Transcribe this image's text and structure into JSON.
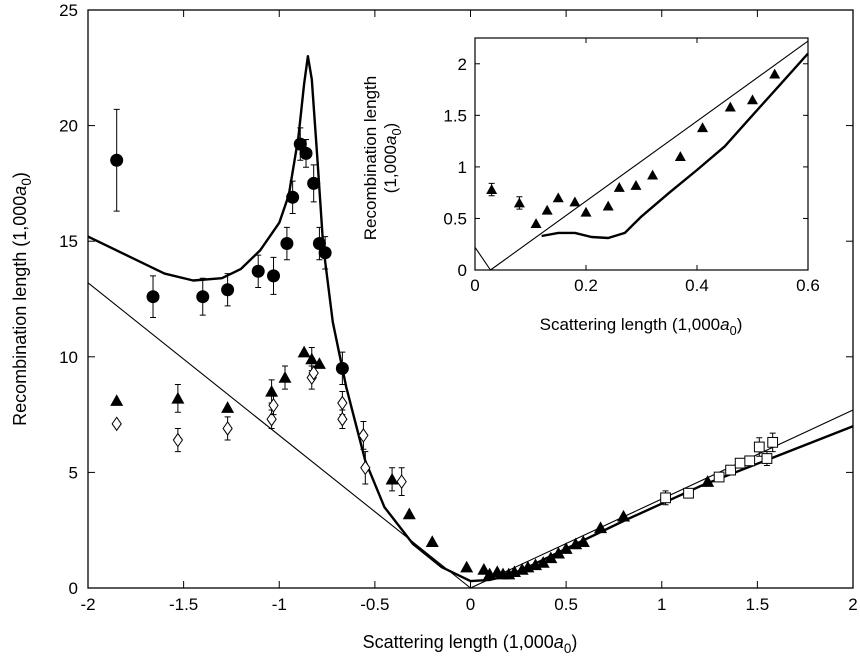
{
  "chart_data": [
    {
      "type": "scatter",
      "xlabel": "Scattering length (1,000a0)",
      "ylabel": "Recombination length (1,000a0)",
      "xlim": [
        -2,
        2
      ],
      "ylim": [
        0,
        25
      ],
      "xticks": [
        "-2",
        "-1.5",
        "-1",
        "-0.5",
        "0",
        "0.5",
        "1",
        "1.5",
        "2"
      ],
      "yticks": [
        "0",
        "5",
        "10",
        "15",
        "20",
        "25"
      ],
      "grid": false,
      "series": [
        {
          "marker": "filled-circle",
          "points": [
            {
              "x": -1.85,
              "y": 18.5,
              "err": 2.2
            },
            {
              "x": -1.66,
              "y": 12.6,
              "err": 0.9
            },
            {
              "x": -1.4,
              "y": 12.6,
              "err": 0.8
            },
            {
              "x": -1.27,
              "y": 12.9,
              "err": 0.7
            },
            {
              "x": -1.11,
              "y": 13.7,
              "err": 0.7
            },
            {
              "x": -1.03,
              "y": 13.5,
              "err": 0.8
            },
            {
              "x": -0.96,
              "y": 14.9,
              "err": 0.7
            },
            {
              "x": -0.93,
              "y": 16.9,
              "err": 0.7
            },
            {
              "x": -0.89,
              "y": 19.2,
              "err": 0.7
            },
            {
              "x": -0.86,
              "y": 18.8,
              "err": 0.6
            },
            {
              "x": -0.82,
              "y": 17.5,
              "err": 0.8
            },
            {
              "x": -0.79,
              "y": 14.9,
              "err": 0.7
            },
            {
              "x": -0.76,
              "y": 14.5,
              "err": 0.7
            },
            {
              "x": -0.67,
              "y": 9.5,
              "err": 0.7
            }
          ]
        },
        {
          "marker": "filled-triangle",
          "points": [
            {
              "x": -1.85,
              "y": 8.1,
              "err": 0
            },
            {
              "x": -1.53,
              "y": 8.2,
              "err": 0.6
            },
            {
              "x": -1.27,
              "y": 7.8,
              "err": 0
            },
            {
              "x": -1.04,
              "y": 8.5,
              "err": 0.5
            },
            {
              "x": -0.97,
              "y": 9.1,
              "err": 0.5
            },
            {
              "x": -0.87,
              "y": 10.2,
              "err": 0
            },
            {
              "x": -0.83,
              "y": 9.9,
              "err": 0.5
            },
            {
              "x": -0.79,
              "y": 9.7,
              "err": 0
            },
            {
              "x": -0.41,
              "y": 4.7,
              "err": 0.5
            },
            {
              "x": -0.32,
              "y": 3.2,
              "err": 0
            },
            {
              "x": -0.2,
              "y": 2.0,
              "err": 0
            },
            {
              "x": -0.02,
              "y": 0.9,
              "err": 0
            },
            {
              "x": 0.07,
              "y": 0.8,
              "err": 0
            },
            {
              "x": 0.1,
              "y": 0.6,
              "err": 0
            },
            {
              "x": 0.14,
              "y": 0.7,
              "err": 0
            },
            {
              "x": 0.17,
              "y": 0.6,
              "err": 0
            },
            {
              "x": 0.2,
              "y": 0.6,
              "err": 0
            },
            {
              "x": 0.23,
              "y": 0.7,
              "err": 0
            },
            {
              "x": 0.27,
              "y": 0.8,
              "err": 0
            },
            {
              "x": 0.3,
              "y": 0.9,
              "err": 0
            },
            {
              "x": 0.34,
              "y": 1.0,
              "err": 0
            },
            {
              "x": 0.38,
              "y": 1.1,
              "err": 0
            },
            {
              "x": 0.42,
              "y": 1.3,
              "err": 0
            },
            {
              "x": 0.46,
              "y": 1.5,
              "err": 0
            },
            {
              "x": 0.5,
              "y": 1.7,
              "err": 0
            },
            {
              "x": 0.55,
              "y": 1.9,
              "err": 0
            },
            {
              "x": 0.59,
              "y": 2.0,
              "err": 0
            },
            {
              "x": 0.68,
              "y": 2.6,
              "err": 0
            },
            {
              "x": 0.8,
              "y": 3.1,
              "err": 0
            },
            {
              "x": 1.24,
              "y": 4.6,
              "err": 0
            }
          ]
        },
        {
          "marker": "open-diamond",
          "points": [
            {
              "x": -1.85,
              "y": 7.1,
              "err": 0
            },
            {
              "x": -1.53,
              "y": 6.4,
              "err": 0.5
            },
            {
              "x": -1.27,
              "y": 6.9,
              "err": 0.5
            },
            {
              "x": -1.04,
              "y": 7.3,
              "err": 0.4
            },
            {
              "x": -1.03,
              "y": 7.9,
              "err": 0.4
            },
            {
              "x": -0.83,
              "y": 9.1,
              "err": 0.5
            },
            {
              "x": -0.82,
              "y": 9.3,
              "err": 0
            },
            {
              "x": -0.67,
              "y": 8.0,
              "err": 0.5
            },
            {
              "x": -0.67,
              "y": 7.3,
              "err": 0.4
            },
            {
              "x": -0.56,
              "y": 6.6,
              "err": 0.6
            },
            {
              "x": -0.55,
              "y": 5.2,
              "err": 0.7
            },
            {
              "x": -0.36,
              "y": 4.6,
              "err": 0.6
            }
          ]
        },
        {
          "marker": "open-square",
          "points": [
            {
              "x": 1.02,
              "y": 3.9,
              "err": 0.3
            },
            {
              "x": 1.14,
              "y": 4.1,
              "err": 0
            },
            {
              "x": 1.3,
              "y": 4.8,
              "err": 0
            },
            {
              "x": 1.36,
              "y": 5.1,
              "err": 0
            },
            {
              "x": 1.41,
              "y": 5.4,
              "err": 0
            },
            {
              "x": 1.46,
              "y": 5.5,
              "err": 0
            },
            {
              "x": 1.51,
              "y": 6.1,
              "err": 0.4
            },
            {
              "x": 1.55,
              "y": 5.6,
              "err": 0.3
            },
            {
              "x": 1.58,
              "y": 6.3,
              "err": 0.4
            }
          ]
        }
      ],
      "curves": [
        {
          "style": "thick",
          "points": [
            [
              -2,
              15.2
            ],
            [
              -1.8,
              14.4
            ],
            [
              -1.6,
              13.6
            ],
            [
              -1.45,
              13.3
            ],
            [
              -1.3,
              13.4
            ],
            [
              -1.2,
              13.8
            ],
            [
              -1.1,
              14.6
            ],
            [
              -1.0,
              15.8
            ],
            [
              -0.95,
              17.0
            ],
            [
              -0.9,
              19.5
            ],
            [
              -0.87,
              21.8
            ],
            [
              -0.85,
              23.0
            ],
            [
              -0.83,
              22.0
            ],
            [
              -0.8,
              18.5
            ],
            [
              -0.77,
              14.8
            ],
            [
              -0.72,
              11.5
            ],
            [
              -0.65,
              8.7
            ],
            [
              -0.55,
              5.5
            ],
            [
              -0.45,
              3.5
            ],
            [
              -0.3,
              1.9
            ],
            [
              -0.15,
              0.9
            ],
            [
              0,
              0.3
            ],
            [
              0.1,
              0.35
            ],
            [
              0.2,
              0.55
            ],
            [
              0.3,
              0.9
            ],
            [
              0.5,
              1.7
            ],
            [
              0.8,
              2.9
            ],
            [
              1.2,
              4.4
            ],
            [
              1.6,
              5.7
            ],
            [
              2,
              7.0
            ]
          ]
        },
        {
          "style": "thin",
          "points": [
            [
              -2,
              13.2
            ],
            [
              0,
              0
            ],
            [
              2,
              7.7
            ]
          ]
        }
      ]
    },
    {
      "type": "line",
      "xlabel": "Scattering length (1,000a0)",
      "ylabel": "Recombination length (1,000a0)",
      "xlim": [
        0,
        0.6
      ],
      "ylim": [
        0,
        2.25
      ],
      "xticks": [
        "0",
        "0.2",
        "0.4",
        "0.6"
      ],
      "yticks": [
        "0",
        "0.5",
        "1",
        "1.5",
        "2"
      ],
      "grid": false,
      "series": [
        {
          "marker": "filled-triangle",
          "points": [
            {
              "x": 0.03,
              "y": 0.78,
              "err": 0.06
            },
            {
              "x": 0.08,
              "y": 0.65,
              "err": 0.06
            },
            {
              "x": 0.11,
              "y": 0.45,
              "err": 0
            },
            {
              "x": 0.13,
              "y": 0.58,
              "err": 0
            },
            {
              "x": 0.15,
              "y": 0.7,
              "err": 0
            },
            {
              "x": 0.18,
              "y": 0.66,
              "err": 0
            },
            {
              "x": 0.2,
              "y": 0.56,
              "err": 0
            },
            {
              "x": 0.24,
              "y": 0.62,
              "err": 0
            },
            {
              "x": 0.26,
              "y": 0.8,
              "err": 0
            },
            {
              "x": 0.29,
              "y": 0.82,
              "err": 0
            },
            {
              "x": 0.32,
              "y": 0.92,
              "err": 0
            },
            {
              "x": 0.37,
              "y": 1.1,
              "err": 0
            },
            {
              "x": 0.41,
              "y": 1.38,
              "err": 0
            },
            {
              "x": 0.46,
              "y": 1.58,
              "err": 0
            },
            {
              "x": 0.5,
              "y": 1.65,
              "err": 0
            },
            {
              "x": 0.54,
              "y": 1.9,
              "err": 0
            }
          ]
        }
      ],
      "curves": [
        {
          "style": "thin",
          "points": [
            [
              0,
              0.22
            ],
            [
              0.028,
              0
            ],
            [
              0.6,
              2.22
            ]
          ]
        },
        {
          "style": "thick",
          "points": [
            [
              0.12,
              0.33
            ],
            [
              0.15,
              0.36
            ],
            [
              0.18,
              0.36
            ],
            [
              0.21,
              0.32
            ],
            [
              0.24,
              0.31
            ],
            [
              0.27,
              0.36
            ],
            [
              0.3,
              0.52
            ],
            [
              0.35,
              0.75
            ],
            [
              0.4,
              0.97
            ],
            [
              0.45,
              1.2
            ],
            [
              0.5,
              1.5
            ],
            [
              0.55,
              1.8
            ],
            [
              0.6,
              2.1
            ]
          ]
        }
      ]
    }
  ]
}
